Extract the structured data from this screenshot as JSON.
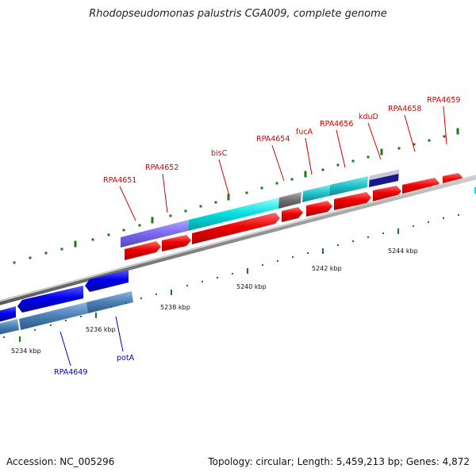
{
  "title": "Rhodopseudomonas palustris CGA009, complete genome",
  "footer": {
    "accession": "Accession: NC_005296",
    "summary": "Topology: circular; Length: 5,459,213 bp; Genes: 4,872"
  },
  "scale_labels": [
    "5234 kbp",
    "5236 kbp",
    "5238 kbp",
    "5240 kbp",
    "5242 kbp",
    "5244 kbp"
  ],
  "gene_labels_top": [
    "RPA4651",
    "RPA4652",
    "bisC",
    "RPA4654",
    "fucA",
    "RPA4656",
    "kduD",
    "RPA4658",
    "RPA4659"
  ],
  "gene_labels_bottom": [
    "RPA4649",
    "potA"
  ],
  "colors": {
    "forward_cds": "#ee0000",
    "reverse_cds": "#0000ee",
    "cog_purple": "#7b68ee",
    "cog_cyan": "#00dddd",
    "cog_gray": "#707070",
    "cog_navy": "#1a1a8c",
    "cog_steel": "#4a7fb5",
    "backbone": "#8c8c8c",
    "ticks": "#1a7a1a"
  }
}
